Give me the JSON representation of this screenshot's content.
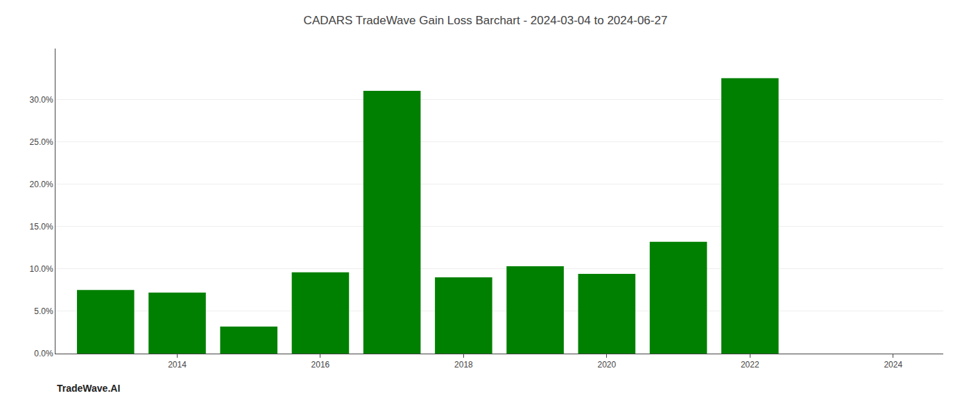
{
  "chart_data": {
    "type": "bar",
    "title": "CADARS TradeWave Gain Loss Barchart - 2024-03-04 to 2024-06-27",
    "x": [
      2013,
      2014,
      2015,
      2016,
      2017,
      2018,
      2019,
      2020,
      2021,
      2022,
      2023
    ],
    "values": [
      0.075,
      0.072,
      0.032,
      0.096,
      0.31,
      0.09,
      0.103,
      0.094,
      0.132,
      0.325,
      0.0
    ],
    "color": "#008000",
    "xlim": [
      2012.3,
      2024.7
    ],
    "xticks": [
      2014,
      2016,
      2018,
      2020,
      2022,
      2024
    ],
    "ylim": [
      0,
      0.36
    ],
    "yticks": [
      {
        "value": 0.0,
        "label": "0.0%"
      },
      {
        "value": 0.05,
        "label": "5.0%"
      },
      {
        "value": 0.1,
        "label": "10.0%"
      },
      {
        "value": 0.15,
        "label": "15.0%"
      },
      {
        "value": 0.2,
        "label": "20.0%"
      },
      {
        "value": 0.25,
        "label": "25.0%"
      },
      {
        "value": 0.3,
        "label": "30.0%"
      }
    ],
    "grid": "y",
    "annotations": [
      {
        "text": "TradeWave.AI"
      }
    ]
  }
}
